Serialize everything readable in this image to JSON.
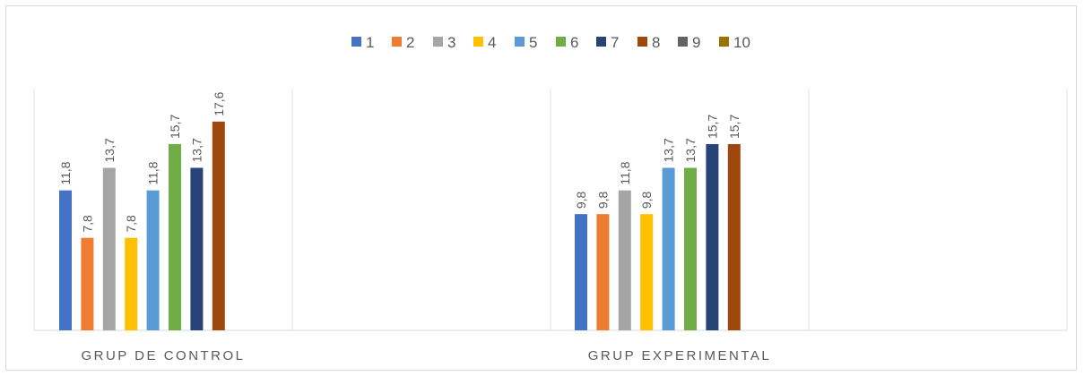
{
  "chart_data": {
    "type": "bar",
    "title": "",
    "xlabel": "",
    "ylabel": "",
    "ylim": [
      0,
      20
    ],
    "grid": "vertical category separators",
    "legend_position": "top",
    "categories": [
      "GRUP DE CONTROL",
      "GRUP EXPERIMENTAL"
    ],
    "series": [
      {
        "name": "1",
        "color": "#4472C4",
        "values": [
          11.8,
          9.8
        ],
        "labels": [
          "11,8",
          "9,8"
        ]
      },
      {
        "name": "2",
        "color": "#ED7D31",
        "values": [
          7.8,
          9.8
        ],
        "labels": [
          "7,8",
          "9,8"
        ]
      },
      {
        "name": "3",
        "color": "#A5A5A5",
        "values": [
          13.7,
          11.8
        ],
        "labels": [
          "13,7",
          "11,8"
        ]
      },
      {
        "name": "4",
        "color": "#FFC000",
        "values": [
          7.8,
          9.8
        ],
        "labels": [
          "7,8",
          "9,8"
        ]
      },
      {
        "name": "5",
        "color": "#5B9BD5",
        "values": [
          11.8,
          13.7
        ],
        "labels": [
          "11,8",
          "13,7"
        ]
      },
      {
        "name": "6",
        "color": "#70AD47",
        "values": [
          15.7,
          13.7
        ],
        "labels": [
          "15,7",
          "13,7"
        ]
      },
      {
        "name": "7",
        "color": "#264478",
        "values": [
          13.7,
          15.7
        ],
        "labels": [
          "13,7",
          "15,7"
        ]
      },
      {
        "name": "8",
        "color": "#9E480E",
        "values": [
          17.6,
          15.7
        ],
        "labels": [
          "17,6",
          "15,7"
        ]
      },
      {
        "name": "9",
        "color": "#636363",
        "values": [
          null,
          null
        ],
        "labels": [
          "",
          ""
        ]
      },
      {
        "name": "10",
        "color": "#997300",
        "values": [
          null,
          null
        ],
        "labels": [
          "",
          ""
        ]
      }
    ]
  }
}
